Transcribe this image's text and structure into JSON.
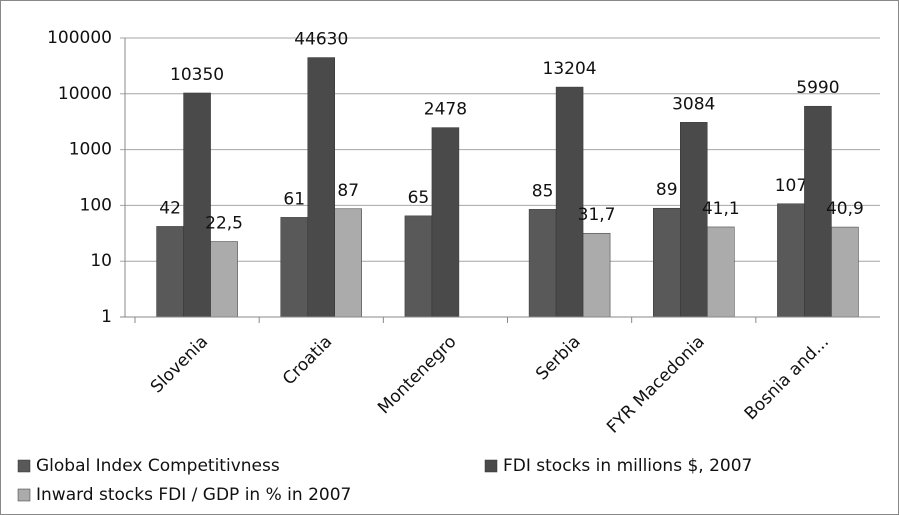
{
  "chart_data": {
    "type": "bar",
    "categories": [
      "Slovenia",
      "Croatia",
      "Montenegro",
      "Serbia",
      "FYR Macedonia",
      "Bosnia and..."
    ],
    "series": [
      {
        "name": "Global Index Competitivness",
        "color": "#595959",
        "values": [
          42,
          61,
          65,
          85,
          89,
          107
        ]
      },
      {
        "name": "FDI stocks in millions $, 2007",
        "color": "#4a4a4a",
        "values": [
          10350,
          44630,
          2478,
          13204,
          3084,
          5990
        ]
      },
      {
        "name": "Inward stocks FDI / GDP in % in 2007",
        "color": "#ababab",
        "values": [
          22.5,
          87,
          null,
          31.7,
          41.1,
          40.9
        ],
        "value_labels": [
          "22,5",
          "87",
          null,
          "31,7",
          "41,1",
          "40,9"
        ]
      }
    ],
    "ylim": [
      1,
      100000
    ],
    "yticks": [
      1,
      10,
      100,
      1000,
      10000,
      100000
    ],
    "log_scale": true,
    "grid": true,
    "legend": "bottom"
  }
}
